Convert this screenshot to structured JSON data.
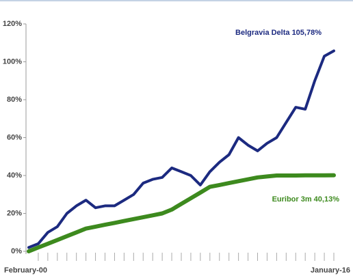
{
  "chart_data": {
    "type": "line",
    "categories": [
      "February-00",
      null,
      null,
      null,
      null,
      null,
      null,
      null,
      null,
      null,
      null,
      null,
      null,
      null,
      null,
      null,
      null,
      null,
      null,
      null,
      null,
      null,
      null,
      null,
      null,
      null,
      null,
      null,
      null,
      null,
      null,
      null,
      "January-16"
    ],
    "series": [
      {
        "name": "Belgravia Delta 105,78%",
        "color": "#1c2a80",
        "values": [
          2,
          4,
          10,
          13,
          20,
          24,
          27,
          23,
          24,
          24,
          27,
          30,
          36,
          38,
          39,
          44,
          42,
          40,
          35,
          42,
          47,
          51,
          60,
          56,
          53,
          57,
          60,
          68,
          76,
          75,
          90,
          103,
          105.78
        ]
      },
      {
        "name": "Euribor 3m 40,13%",
        "color": "#3d8a1e",
        "values": [
          0,
          2,
          4,
          6,
          8,
          10,
          12,
          13,
          14,
          15,
          16,
          17,
          18,
          19,
          20,
          22,
          25,
          28,
          31,
          34,
          35,
          36,
          37,
          38,
          39,
          39.5,
          40,
          40,
          40,
          40.1,
          40.1,
          40.1,
          40.13
        ]
      }
    ],
    "ylim": [
      0,
      120
    ],
    "yticks": [
      {
        "value": 0,
        "label": "0%"
      },
      {
        "value": 20,
        "label": "20%"
      },
      {
        "value": 40,
        "label": "40%"
      },
      {
        "value": 60,
        "label": "60%"
      },
      {
        "value": 80,
        "label": "80%"
      },
      {
        "value": 100,
        "label": "100%"
      },
      {
        "value": 120,
        "label": "120%"
      }
    ],
    "grid": false
  }
}
